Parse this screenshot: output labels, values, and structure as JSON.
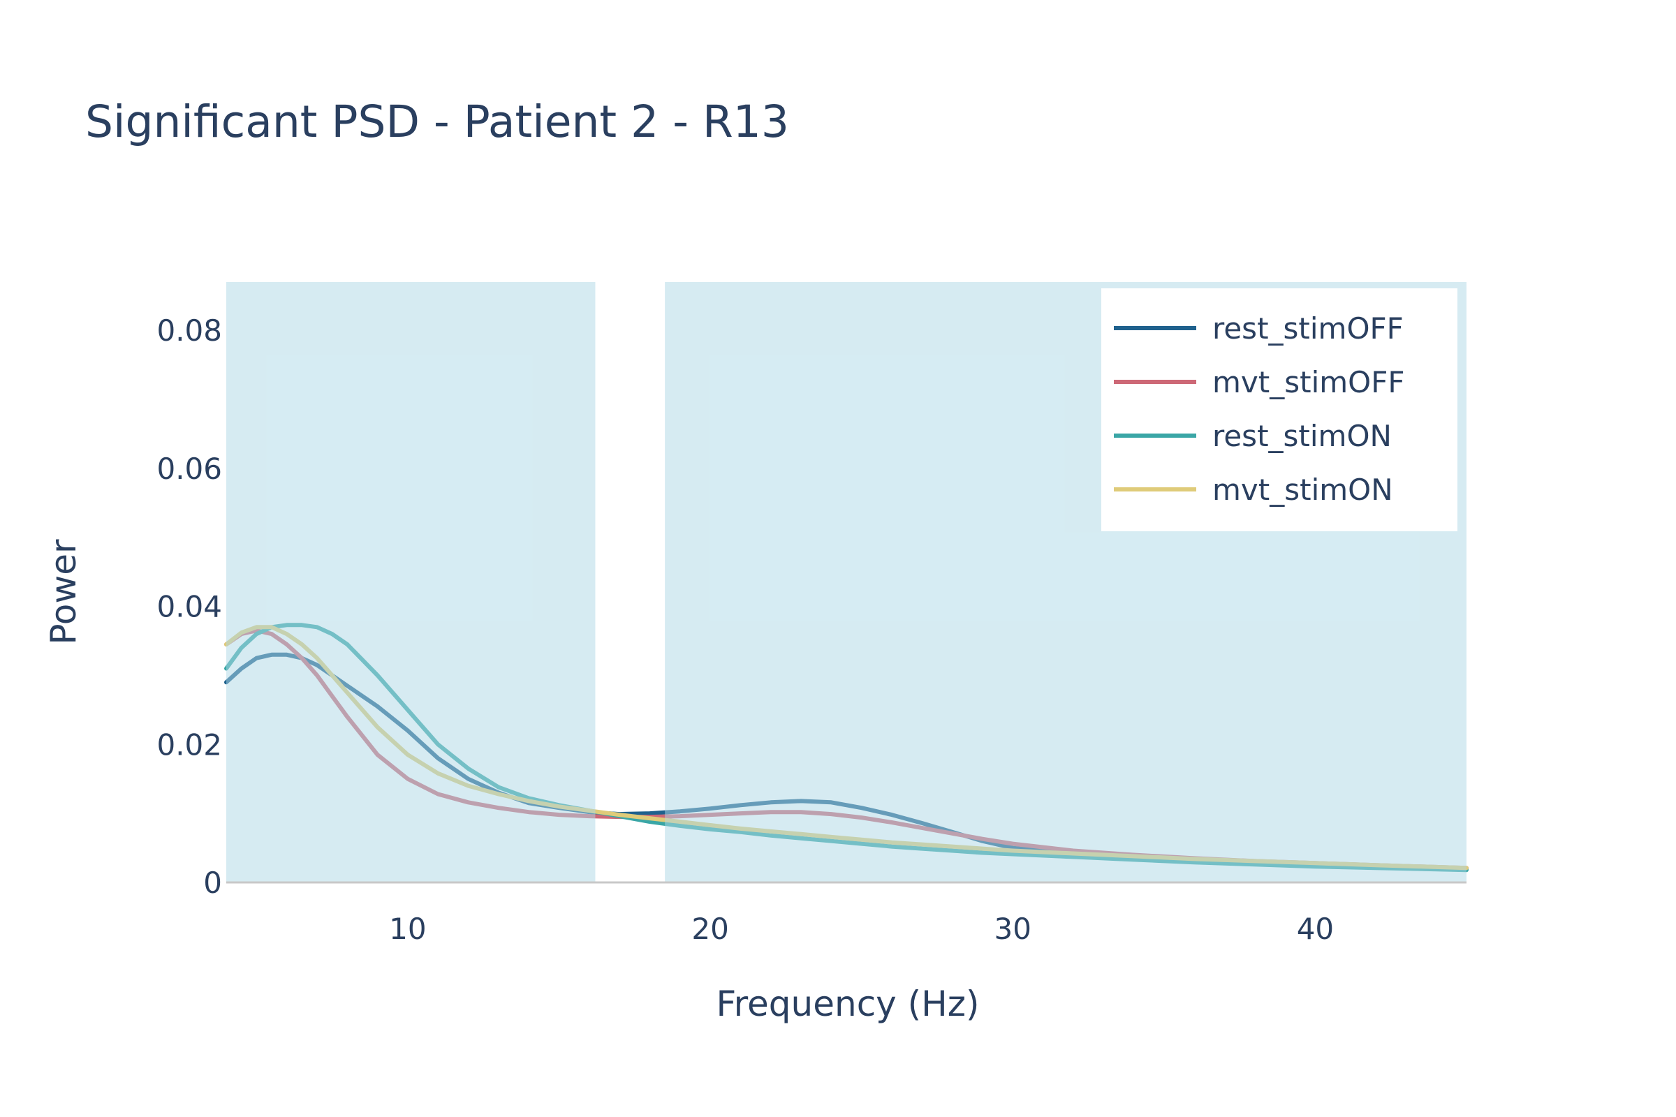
{
  "chart_data": {
    "type": "line",
    "title": "Significant PSD - Patient 2 - R13",
    "xlabel": "Frequency (Hz)",
    "ylabel": "Power",
    "xlim": [
      4,
      45
    ],
    "ylim": [
      0,
      0.087
    ],
    "xticks": [
      10,
      20,
      30,
      40
    ],
    "yticks": [
      0,
      0.02,
      0.04,
      0.06,
      0.08
    ],
    "xtick_labels": [
      "10",
      "20",
      "30",
      "40"
    ],
    "ytick_labels": [
      "0",
      "0.02",
      "0.04",
      "0.06",
      "0.08"
    ],
    "grid": false,
    "legend_position": "top-right",
    "significant_bands": [
      [
        4,
        16.2
      ],
      [
        18.5,
        45
      ]
    ],
    "band_color": "#add8e6",
    "band_opacity": 0.5,
    "series": [
      {
        "name": "rest_stimOFF",
        "color": "#1f618d",
        "x": [
          4,
          4.5,
          5,
          5.5,
          6,
          6.5,
          7,
          7.5,
          8,
          9,
          10,
          11,
          12,
          13,
          14,
          15,
          16,
          17,
          18,
          19,
          20,
          21,
          22,
          23,
          24,
          25,
          26,
          27,
          28,
          29,
          30,
          32,
          34,
          36,
          38,
          40,
          42,
          45
        ],
        "y": [
          0.029,
          0.031,
          0.0325,
          0.033,
          0.033,
          0.0325,
          0.0315,
          0.03,
          0.0285,
          0.0255,
          0.022,
          0.018,
          0.015,
          0.013,
          0.0115,
          0.0108,
          0.0102,
          0.0099,
          0.01,
          0.0103,
          0.0107,
          0.0112,
          0.0116,
          0.0118,
          0.0116,
          0.0108,
          0.0098,
          0.0086,
          0.0073,
          0.006,
          0.005,
          0.0042,
          0.0037,
          0.0033,
          0.003,
          0.0027,
          0.0024,
          0.002
        ]
      },
      {
        "name": "mvt_stimOFF",
        "color": "#cd6876",
        "x": [
          4,
          4.5,
          5,
          5.5,
          6,
          6.5,
          7,
          7.5,
          8,
          9,
          10,
          11,
          12,
          13,
          14,
          15,
          16,
          17,
          18,
          19,
          20,
          21,
          22,
          23,
          24,
          25,
          26,
          27,
          28,
          29,
          30,
          32,
          34,
          36,
          38,
          40,
          42,
          45
        ],
        "y": [
          0.0345,
          0.036,
          0.0365,
          0.036,
          0.0345,
          0.0325,
          0.03,
          0.027,
          0.024,
          0.0185,
          0.015,
          0.0128,
          0.0116,
          0.0108,
          0.0102,
          0.0098,
          0.0096,
          0.0095,
          0.0095,
          0.0096,
          0.0098,
          0.01,
          0.0102,
          0.0102,
          0.0099,
          0.0094,
          0.0087,
          0.0079,
          0.0071,
          0.0063,
          0.0056,
          0.0046,
          0.004,
          0.0035,
          0.0031,
          0.0028,
          0.0025,
          0.0021
        ]
      },
      {
        "name": "rest_stimON",
        "color": "#3aa6a6",
        "x": [
          4,
          4.5,
          5,
          5.5,
          6,
          6.5,
          7,
          7.5,
          8,
          9,
          10,
          11,
          12,
          13,
          14,
          15,
          16,
          17,
          18,
          19,
          20,
          21,
          22,
          23,
          24,
          25,
          26,
          27,
          28,
          29,
          30,
          32,
          34,
          36,
          38,
          40,
          42,
          45
        ],
        "y": [
          0.031,
          0.034,
          0.036,
          0.037,
          0.0373,
          0.0373,
          0.037,
          0.036,
          0.0345,
          0.03,
          0.025,
          0.02,
          0.0165,
          0.0138,
          0.0122,
          0.0112,
          0.0104,
          0.0096,
          0.0088,
          0.0082,
          0.0077,
          0.0073,
          0.0068,
          0.0064,
          0.006,
          0.0056,
          0.0052,
          0.0049,
          0.0046,
          0.0043,
          0.0041,
          0.0037,
          0.0033,
          0.0029,
          0.0026,
          0.0023,
          0.0021,
          0.0018
        ]
      },
      {
        "name": "mvt_stimON",
        "color": "#dfcb79",
        "x": [
          4,
          4.5,
          5,
          5.5,
          6,
          6.5,
          7,
          7.5,
          8,
          9,
          10,
          11,
          12,
          13,
          14,
          15,
          16,
          17,
          18,
          19,
          20,
          21,
          22,
          23,
          24,
          25,
          26,
          27,
          28,
          29,
          30,
          32,
          34,
          36,
          38,
          40,
          42,
          45
        ],
        "y": [
          0.0345,
          0.0362,
          0.037,
          0.037,
          0.036,
          0.0345,
          0.0325,
          0.03,
          0.0275,
          0.0225,
          0.0185,
          0.0158,
          0.014,
          0.0128,
          0.0118,
          0.011,
          0.0104,
          0.0098,
          0.0093,
          0.0088,
          0.0083,
          0.0078,
          0.0074,
          0.007,
          0.0066,
          0.0062,
          0.0058,
          0.0055,
          0.0052,
          0.0049,
          0.0046,
          0.0042,
          0.0038,
          0.0034,
          0.0031,
          0.0028,
          0.0025,
          0.0021
        ]
      }
    ]
  }
}
